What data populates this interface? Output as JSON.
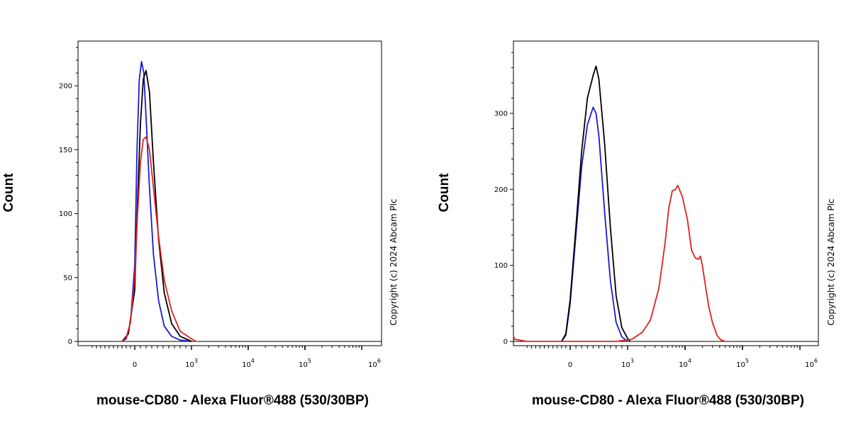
{
  "chart_data": [
    {
      "type": "line",
      "panel": "left",
      "xlabel": "mouse-CD80 - Alexa Fluor®488 (530/30BP)",
      "ylabel": "Count",
      "watermark": "Copyright (c) 2024 Abcam Plc",
      "x_scale": "biexponential",
      "x_ticks": [
        {
          "base": "0",
          "exp": ""
        },
        {
          "base": "10",
          "exp": "3"
        },
        {
          "base": "10",
          "exp": "4"
        },
        {
          "base": "10",
          "exp": "5"
        },
        {
          "base": "10",
          "exp": "6"
        }
      ],
      "y_ticks": [
        "0",
        "50",
        "100",
        "150",
        "200"
      ],
      "ylim": [
        0,
        235
      ],
      "series": [
        {
          "color": "#1a1ad6",
          "x": [
            -300,
            -200,
            -100,
            0,
            40,
            80,
            120,
            160,
            200,
            260,
            330,
            420,
            520,
            650,
            800,
            1000
          ],
          "y": [
            0,
            2,
            15,
            60,
            150,
            205,
            219,
            210,
            175,
            120,
            68,
            32,
            12,
            4,
            1,
            0
          ]
        },
        {
          "color": "#000000",
          "x": [
            -300,
            -150,
            0,
            50,
            100,
            150,
            200,
            260,
            330,
            420,
            520,
            650,
            800,
            1000
          ],
          "y": [
            0,
            6,
            40,
            110,
            170,
            205,
            212,
            195,
            140,
            80,
            38,
            14,
            4,
            0
          ]
        },
        {
          "color": "#e02020",
          "x": [
            -300,
            -200,
            -100,
            0,
            50,
            100,
            150,
            200,
            260,
            330,
            420,
            520,
            650,
            800,
            1000,
            1200
          ],
          "y": [
            0,
            3,
            15,
            50,
            100,
            140,
            158,
            160,
            150,
            120,
            82,
            48,
            24,
            8,
            2,
            0
          ]
        }
      ]
    },
    {
      "type": "line",
      "panel": "right",
      "xlabel": "mouse-CD80 - Alexa Fluor®488 (530/30BP)",
      "ylabel": "Count",
      "watermark": "Copyright (c) 2024 Abcam Plc",
      "x_scale": "biexponential",
      "x_ticks": [
        {
          "base": "0",
          "exp": ""
        },
        {
          "base": "10",
          "exp": "3"
        },
        {
          "base": "10",
          "exp": "4"
        },
        {
          "base": "10",
          "exp": "5"
        },
        {
          "base": "10",
          "exp": "6"
        }
      ],
      "y_ticks": [
        "0",
        "100",
        "200",
        "300"
      ],
      "ylim": [
        0,
        395
      ],
      "series": [
        {
          "color": "#1a1ad6",
          "x": [
            -200,
            -100,
            0,
            100,
            200,
            300,
            400,
            450,
            500,
            600,
            700,
            800,
            900,
            1000
          ],
          "y": [
            0,
            8,
            50,
            140,
            230,
            285,
            308,
            300,
            270,
            170,
            80,
            25,
            6,
            0
          ]
        },
        {
          "color": "#000000",
          "x": [
            -200,
            -100,
            0,
            100,
            200,
            300,
            400,
            450,
            500,
            600,
            700,
            800,
            900,
            1000,
            1100
          ],
          "y": [
            0,
            10,
            55,
            150,
            250,
            320,
            350,
            362,
            345,
            260,
            150,
            60,
            18,
            4,
            0
          ]
        },
        {
          "color": "#e02020",
          "x": [
            -2000,
            -1500,
            -1000,
            0,
            800,
            1200,
            1800,
            2500,
            3500,
            4500,
            5200,
            6000,
            6800,
            7500,
            9000,
            11000,
            13000,
            15000,
            17000,
            18500,
            20000,
            23000,
            26000,
            30000,
            36000,
            42000,
            50000
          ],
          "y": [
            6,
            3,
            0,
            0,
            0,
            3,
            12,
            28,
            70,
            130,
            175,
            198,
            200,
            205,
            190,
            160,
            120,
            110,
            108,
            112,
            100,
            70,
            45,
            25,
            8,
            2,
            0
          ]
        }
      ]
    }
  ]
}
